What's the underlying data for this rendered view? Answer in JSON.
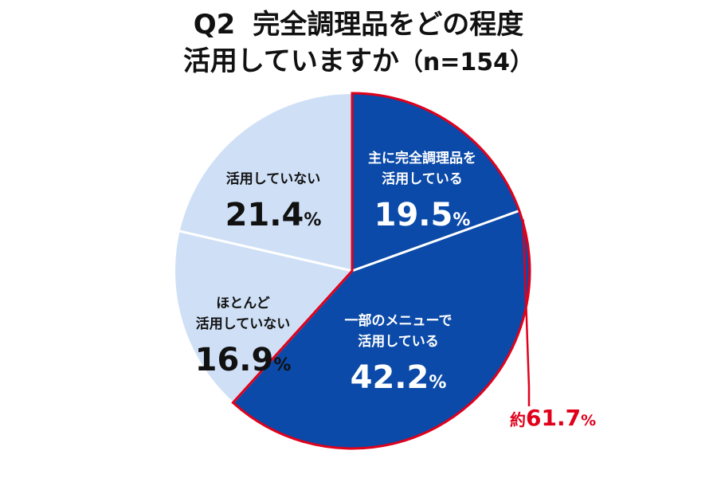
{
  "title": {
    "q_number": "Q2",
    "line1": "完全調理品をどの程度",
    "line2": "活用していますか",
    "sample": "（n=154）"
  },
  "chart_data": {
    "type": "pie",
    "start": "12 o'clock, clockwise",
    "slices": [
      {
        "label_lines": [
          "主に完全調理品を",
          "活用している"
        ],
        "value": 19.5,
        "display": "19.5",
        "color": "#0b4aa8",
        "text_color": "#ffffff"
      },
      {
        "label_lines": [
          "一部のメニューで",
          "活用している"
        ],
        "value": 42.2,
        "display": "42.2",
        "color": "#0b4aa8",
        "text_color": "#ffffff"
      },
      {
        "label_lines": [
          "ほとんど",
          "活用していない"
        ],
        "value": 16.9,
        "display": "16.9",
        "color": "#cfe0f6",
        "text_color": "#111111"
      },
      {
        "label_lines": [
          "活用していない"
        ],
        "value": 21.4,
        "display": "21.4",
        "color": "#cfe0f6",
        "text_color": "#111111"
      }
    ],
    "percent_sign": "%",
    "highlight": {
      "prefix": "約",
      "value": 61.7,
      "display": "61.7",
      "suffix": "%",
      "color": "#e0001b",
      "covers_slices": [
        0,
        1
      ]
    },
    "separator_color": "#ffffff"
  }
}
